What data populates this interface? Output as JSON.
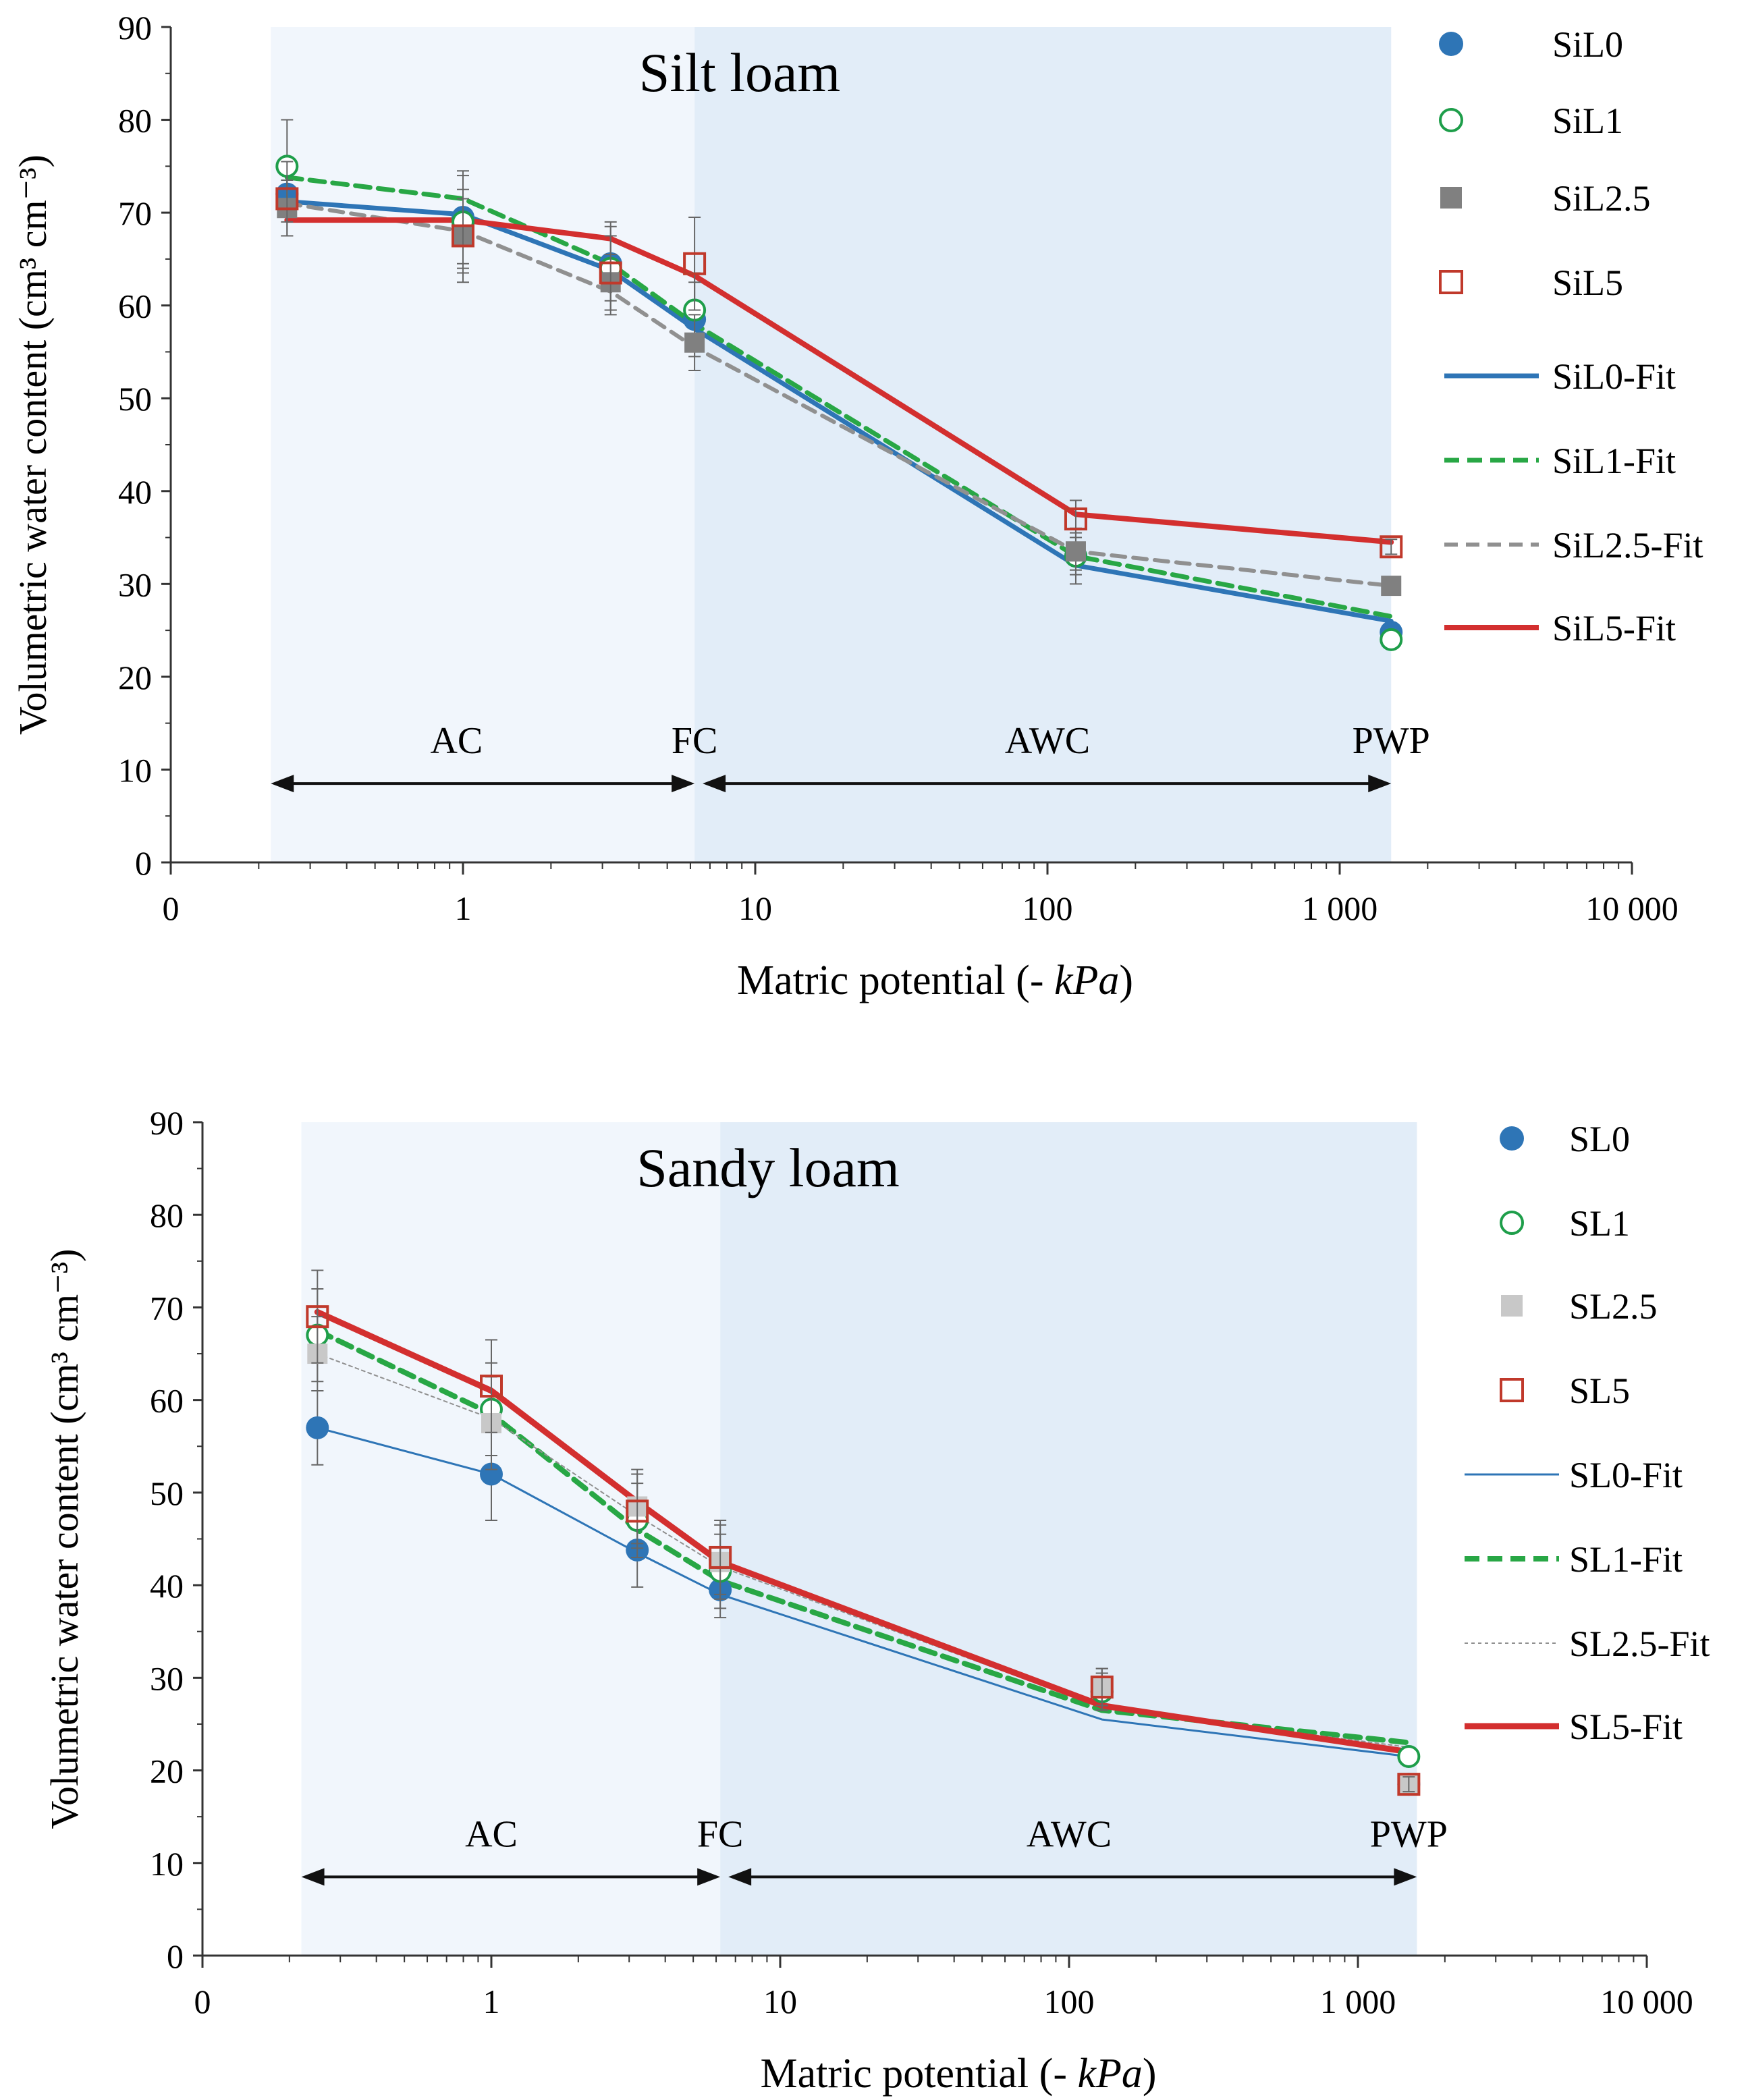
{
  "chart_data": [
    {
      "type": "line",
      "title": "Silt loam",
      "xlabel_prefix": "Matric potential (- ",
      "xlabel_unit": "kPa",
      "xlabel_suffix": ")",
      "ylabel": "Volumetric water content (cm³ cm⁻³)",
      "xscale": "log",
      "xlim": [
        0.1,
        10000
      ],
      "ylim": [
        0,
        90
      ],
      "y_ticks": [
        0,
        10,
        20,
        30,
        40,
        50,
        60,
        70,
        80,
        90
      ],
      "x_ticks": [
        {
          "value": 0.1,
          "label": "0"
        },
        {
          "value": 1,
          "label": "1"
        },
        {
          "value": 10,
          "label": "10"
        },
        {
          "value": 100,
          "label": "100"
        },
        {
          "value": 1000,
          "label": "1 000"
        },
        {
          "value": 10000,
          "label": "10 000"
        }
      ],
      "regions": [
        {
          "from": 0.22,
          "to": 6.2,
          "color": "#f1f6fc"
        },
        {
          "from": 6.2,
          "to": 1500,
          "color": "#e2edf8"
        }
      ],
      "zones": [
        {
          "label": "AC",
          "from": 0.22,
          "to": 6.2,
          "label_x": 0.95
        },
        {
          "label": "FC",
          "from": null,
          "to": null,
          "label_x": 6.2
        },
        {
          "label": "AWC",
          "from": 6.2,
          "to": 1500,
          "label_x": 100
        },
        {
          "label": "PWP",
          "from": null,
          "to": null,
          "label_x": 1500
        }
      ],
      "zone_label_y": 12.5,
      "zone_arrow_y": 8.5,
      "x_points": [
        0.25,
        1,
        3.2,
        6.2,
        125,
        1500
      ],
      "series": [
        {
          "name": "SiL0",
          "kind": "points",
          "marker": "circle-filled",
          "color": "#2e75b6",
          "values": [
            72.0,
            69.5,
            64.5,
            58.5,
            33.0,
            24.8
          ],
          "errors": [
            3,
            5,
            4,
            4,
            2,
            0.8
          ]
        },
        {
          "name": "SiL1",
          "kind": "points",
          "marker": "circle-open",
          "color": "#1e9e4a",
          "values": [
            75.0,
            69.0,
            64.0,
            59.5,
            33.0,
            24.0
          ],
          "errors": [
            5,
            5,
            5,
            4,
            3,
            0.5
          ]
        },
        {
          "name": "SiL2.5",
          "kind": "points",
          "marker": "square-filled",
          "color": "#808080",
          "values": [
            70.5,
            67.5,
            62.5,
            56.0,
            33.5,
            29.8
          ],
          "errors": [
            3,
            4,
            3,
            3,
            2,
            0.8
          ]
        },
        {
          "name": "SiL5",
          "kind": "points",
          "marker": "square-open",
          "color": "#c0392b",
          "values": [
            71.5,
            67.5,
            63.5,
            64.5,
            37.0,
            34.0
          ],
          "errors": [
            4,
            5,
            4,
            5,
            2,
            0.8
          ]
        },
        {
          "name": "SiL0-Fit",
          "kind": "line",
          "color": "#2e75b6",
          "dash": "",
          "width": 7,
          "values": [
            71.2,
            69.8,
            63.8,
            57.5,
            32.0,
            26.0
          ]
        },
        {
          "name": "SiL1-Fit",
          "kind": "line",
          "color": "#28a745",
          "dash": "22 12",
          "width": 7,
          "values": [
            73.8,
            71.5,
            64.5,
            58.0,
            33.0,
            26.5
          ]
        },
        {
          "name": "SiL2.5-Fit",
          "kind": "line",
          "color": "#909090",
          "dash": "20 12",
          "width": 6,
          "values": [
            71.0,
            68.0,
            61.5,
            55.5,
            33.5,
            29.8
          ]
        },
        {
          "name": "SiL5-Fit",
          "kind": "line",
          "color": "#d32f2f",
          "dash": "",
          "width": 8,
          "values": [
            69.2,
            69.2,
            67.2,
            63.2,
            37.5,
            34.5
          ]
        }
      ]
    },
    {
      "type": "line",
      "title": "Sandy loam",
      "xlabel_prefix": "Matric potential (- ",
      "xlabel_unit": "kPa",
      "xlabel_suffix": ")",
      "ylabel": "Volumetric water content (cm³ cm⁻³)",
      "xscale": "log",
      "xlim": [
        0.1,
        10000
      ],
      "ylim": [
        0,
        90
      ],
      "y_ticks": [
        0,
        10,
        20,
        30,
        40,
        50,
        60,
        70,
        80,
        90
      ],
      "x_ticks": [
        {
          "value": 0.1,
          "label": "0"
        },
        {
          "value": 1,
          "label": "1"
        },
        {
          "value": 10,
          "label": "10"
        },
        {
          "value": 100,
          "label": "100"
        },
        {
          "value": 1000,
          "label": "1 000"
        },
        {
          "value": 10000,
          "label": "10 000"
        }
      ],
      "regions": [
        {
          "from": 0.22,
          "to": 6.2,
          "color": "#f1f6fc"
        },
        {
          "from": 6.2,
          "to": 1600,
          "color": "#e2edf8"
        }
      ],
      "zones": [
        {
          "label": "AC",
          "from": 0.22,
          "to": 6.2,
          "label_x": 1.0
        },
        {
          "label": "FC",
          "from": null,
          "to": null,
          "label_x": 6.2
        },
        {
          "label": "AWC",
          "from": 6.2,
          "to": 1600,
          "label_x": 100
        },
        {
          "label": "PWP",
          "from": null,
          "to": null,
          "label_x": 1500
        }
      ],
      "zone_label_y": 12.5,
      "zone_arrow_y": 8.5,
      "x_points": [
        0.25,
        1,
        3.2,
        6.2,
        130,
        1500
      ],
      "series": [
        {
          "name": "SL0",
          "kind": "points",
          "marker": "circle-filled",
          "color": "#2e75b6",
          "values": [
            57.0,
            52.0,
            43.8,
            39.5,
            28.5,
            18.5
          ],
          "errors": [
            4,
            5,
            4,
            3,
            2,
            0.8
          ]
        },
        {
          "name": "SL1",
          "kind": "points",
          "marker": "circle-open",
          "color": "#1e9e4a",
          "values": [
            67.0,
            59.0,
            47.0,
            41.5,
            28.5,
            21.5
          ],
          "errors": [
            5,
            5,
            4,
            4,
            2,
            0.8
          ]
        },
        {
          "name": "SL2.5",
          "kind": "points",
          "marker": "square-filled",
          "color": "#c8c8c8",
          "values": [
            65.0,
            57.5,
            48.5,
            42.5,
            29.0,
            18.5
          ],
          "errors": [
            4,
            5,
            4,
            4,
            2,
            0.8
          ]
        },
        {
          "name": "SL5",
          "kind": "points",
          "marker": "square-open",
          "color": "#c0392b",
          "values": [
            69.0,
            61.5,
            48.0,
            43.0,
            29.0,
            18.5
          ],
          "errors": [
            5,
            5,
            4,
            4,
            2,
            0.8
          ]
        },
        {
          "name": "SL0-Fit",
          "kind": "line",
          "color": "#2e75b6",
          "dash": "",
          "width": 3,
          "values": [
            57.0,
            52.0,
            43.5,
            39.0,
            25.5,
            21.5
          ]
        },
        {
          "name": "SL1-Fit",
          "kind": "line",
          "color": "#28a745",
          "dash": "22 12",
          "width": 8,
          "values": [
            67.5,
            58.5,
            46.0,
            40.5,
            26.5,
            23.0
          ]
        },
        {
          "name": "SL2.5-Fit",
          "kind": "line",
          "color": "#909090",
          "dash": "5 5",
          "width": 2,
          "values": [
            65.0,
            58.0,
            47.5,
            42.0,
            26.8,
            22.5
          ]
        },
        {
          "name": "SL5-Fit",
          "kind": "line",
          "color": "#d32f2f",
          "dash": "",
          "width": 9,
          "values": [
            69.5,
            61.0,
            49.0,
            42.5,
            27.0,
            22.0
          ]
        }
      ]
    }
  ]
}
